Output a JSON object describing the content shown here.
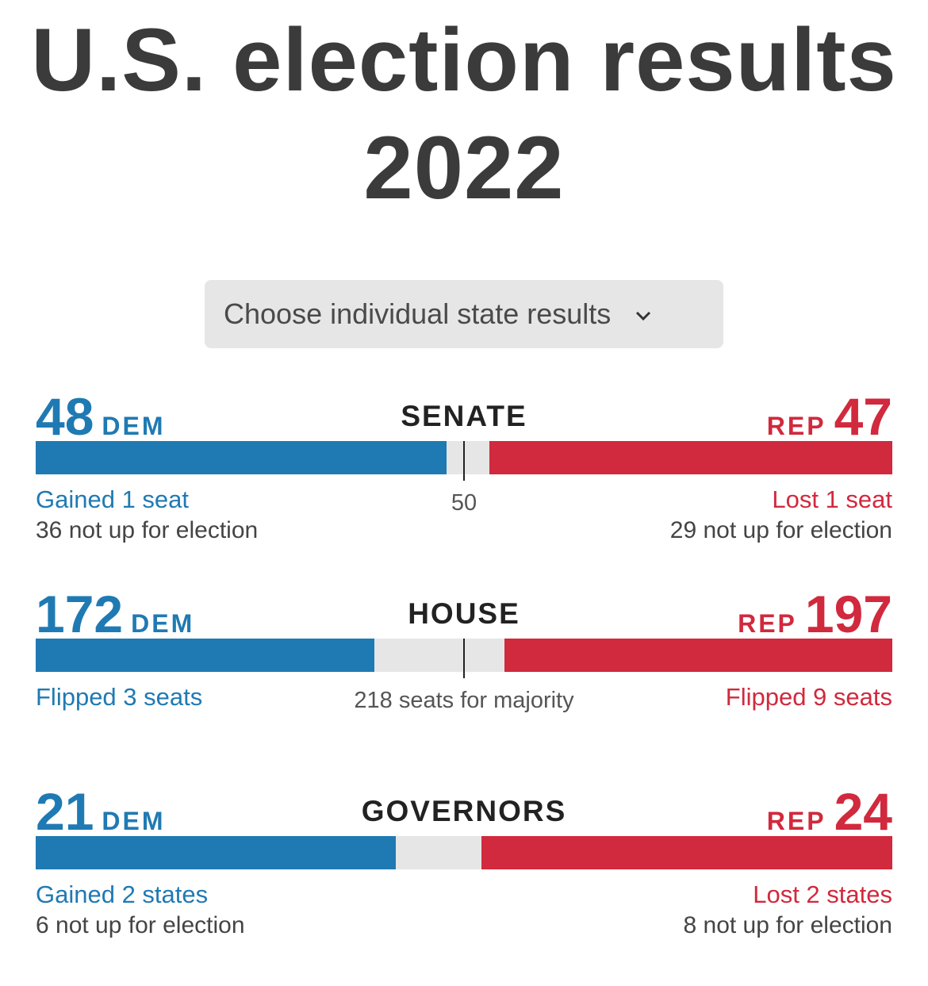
{
  "title_line1": "U.S. election results",
  "title_line2": "2022",
  "chooser": {
    "label": "Choose individual state results",
    "icon": "chevron-down-icon"
  },
  "colors": {
    "dem": "#1f7ab3",
    "rep": "#d1293d",
    "empty": "#e6e6e6"
  },
  "races": [
    {
      "name": "SENATE",
      "dem_label": "DEM",
      "rep_label": "REP",
      "dem": 48,
      "rep": 47,
      "dem_count": "48",
      "rep_count": "47",
      "total": 100,
      "threshold": 50,
      "center_label": "50",
      "dem_note": "Gained 1 seat",
      "dem_sub": "36 not up for election",
      "rep_note": "Lost 1 seat",
      "rep_sub": "29 not up for election"
    },
    {
      "name": "HOUSE",
      "dem_label": "DEM",
      "rep_label": "REP",
      "dem": 172,
      "rep": 197,
      "dem_count": "172",
      "rep_count": "197",
      "total": 435,
      "threshold": 218,
      "center_label": "218 seats for majority",
      "dem_note": "Flipped 3 seats",
      "dem_sub": "",
      "rep_note": "Flipped 9 seats",
      "rep_sub": ""
    },
    {
      "name": "GOVERNORS",
      "dem_label": "DEM",
      "rep_label": "REP",
      "dem": 21,
      "rep": 24,
      "dem_count": "21",
      "rep_count": "24",
      "total": 50,
      "threshold": null,
      "center_label": "",
      "dem_note": "Gained 2 states",
      "dem_sub": "6 not up for election",
      "rep_note": "Lost 2 states",
      "rep_sub": "8 not up for election"
    }
  ]
}
